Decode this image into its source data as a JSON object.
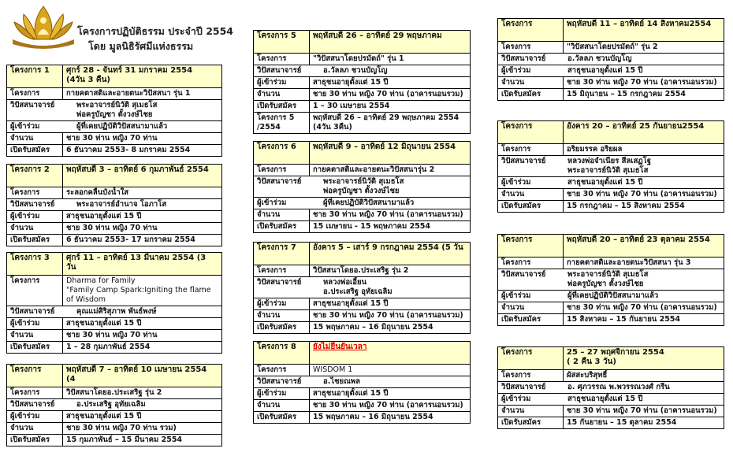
{
  "header": {
    "title_line1": "โครงการปฏิบัติธรรม ประจำปี 2554",
    "title_line2": "โดย มูลนิธิรัศมีแห่งธรรม",
    "logo_text": "มูลนิธิ รัศมีแห่งธรรม"
  },
  "colors": {
    "header_bg": "#ffffcc",
    "logo_gold": "#c8961e",
    "highlight_red": "#e00000"
  },
  "programs": [
    {
      "id": "t1",
      "head": [
        "โครงการ 1",
        [
          "ศุกร์ 28 - จันทร์ 31 มกราคม 2554",
          "(4วัน 3 คืน)"
        ]
      ],
      "rows": [
        [
          "โครงการ",
          [
            "กายคตาสติและอายตนะวิปัสสนา รุ่น 1"
          ]
        ],
        [
          "วิปัสสนาจารย์",
          [
            "พระอาจารย์นิวัติ สุเมธโส",
            "พ่อครูบัญชา ตั้งวงษ์ไชย"
          ],
          "span"
        ],
        [
          "ผู้เข้าร่วม",
          [
            "ผู้ที่เคยปฏิบัติวิปัสสนามาแล้ว"
          ],
          "span"
        ],
        [
          "จำนวน",
          [
            "ชาย 30 ท่าน หญิง 70 ท่าน"
          ]
        ],
        [
          "เปิดรับสมัคร",
          [
            "6 ธันวาคม 2553- 8 มกราคม 2554"
          ]
        ]
      ]
    },
    {
      "id": "t2",
      "head": [
        "โครงการ 2",
        [
          "พฤหัสบดี 3 – อาทิตย์ 6 กุมภาพันธ์ 2554"
        ]
      ],
      "rows": [
        [
          "โครงการ",
          [
            "ระลอกคลื่นบังน้ำใส"
          ]
        ],
        [
          "วิปัสสนาจารย์",
          [
            "พระอาจารย์อำนาจ โอภาโส"
          ],
          "span"
        ],
        [
          "ผู้เข้าร่วม",
          [
            "สาธุชนอายุตั้งแต่ 15 ปี"
          ]
        ],
        [
          "จำนวน",
          [
            "ชาย 30 ท่าน หญิง 70 ท่าน"
          ]
        ],
        [
          "เปิดรับสมัคร",
          [
            "6 ธันวาคม 2553- 17 มกราคม 2554"
          ]
        ]
      ]
    },
    {
      "id": "t3",
      "head": [
        "โครงการ 3",
        [
          "ศุกร์ 11 – อาทิตย์ 13 มีนาคม 2554 (3 วัน"
        ]
      ],
      "rows": [
        [
          "โครงการ",
          [
            "Dharma for Family",
            "\"Family Camp Spark:Igniting the flame of Wisdom"
          ],
          "plain"
        ],
        [
          "วิปัสสนาจารย์",
          [
            "คุณแม่ศิริสุภาพ พันธ์พงษ์"
          ],
          "span"
        ],
        [
          "ผู้เข้าร่วม",
          [
            "สาธุชนอายุตั้งแต่ 15 ปี"
          ]
        ],
        [
          "จำนวน",
          [
            "ชาย 30 ท่าน หญิง 70 ท่าน"
          ]
        ],
        [
          "เปิดรับสมัคร",
          [
            "1 – 28 กุมภาพันธ์ 2554"
          ]
        ]
      ]
    },
    {
      "id": "t4",
      "head": [
        "โครงการ",
        [
          "พฤหัสบดี 7 – อาทิตย์ 10 เมษายน 2554 (4"
        ]
      ],
      "rows": [
        [
          "โครงการ",
          [
            "วิปัสสนาโดยอ.ประเสริฐ รุ่น 2"
          ]
        ],
        [
          "วิปัสสนาจารย์",
          [
            "อ.ประเสริฐ  อุทัยเฉลิม"
          ],
          "span"
        ],
        [
          "ผู้เข้าร่วม",
          [
            "สาธุชนอายุตั้งแต่ 15 ปี"
          ]
        ],
        [
          "จำนวน",
          [
            "ชาย 30 ท่าน หญิง 70 ท่าน รวม)"
          ]
        ],
        [
          "เปิดรับสมัคร",
          [
            "15 กุมภาพันธ์ – 15 มีนาคม  2554"
          ]
        ]
      ]
    },
    {
      "id": "t5",
      "head": [
        "โครงการ 5",
        [
          "พฤหัสบดี 26 – อาทิตย์ 29 พฤษภาคม"
        ]
      ],
      "rows": [
        [
          "โครงการ",
          [
            "\"วิปัสสนาโดยปรมัตถ์\"  รุ่น 1"
          ]
        ],
        [
          "วิปัสสนาจารย์",
          [
            "อ.วัลลภ ชวนบัญโญ"
          ],
          "span"
        ],
        [
          "ผู้เข้าร่วม",
          [
            "สาธุชนอายุตั้งแต่ 15 ปี"
          ]
        ],
        [
          "จำนวน",
          [
            "ชาย 30 ท่าน หญิง 70 ท่าน (อาคารนอนรวม)"
          ]
        ],
        [
          "เปิดรับสมัคร",
          [
            "1 – 30 เมษายน 2554"
          ]
        ],
        [
          "โครงการ 5 /2554",
          [
            "พฤหัสบดี 26 – อาทิตย์ 29 พฤษภาคม 2554 (4วัน 3คืน)"
          ]
        ]
      ]
    },
    {
      "id": "t6",
      "head": [
        "โครงการ 6",
        [
          "พฤหัสบดี 9 – อาทิตย์ 12 มิถุนายน 2554"
        ]
      ],
      "rows": [
        [
          "โครงการ",
          [
            "กายคตาสติและอายตนะวิปัสสนารุ่น 2"
          ]
        ],
        [
          "วิปัสสนาจารย์",
          [
            "พระอาจารย์นิวัติ สุเมธโส",
            "พ่อครูบัญชา ตั้งวงษ์ไชย"
          ],
          "span"
        ],
        [
          "ผู้เข้าร่วม",
          [
            "ผู้ที่เคยปฏิบัติวิปัสสนามาแล้ว"
          ],
          "span"
        ],
        [
          "จำนวน",
          [
            "ชาย 30 ท่าน หญิง 70 ท่าน (อาคารนอนรวม)"
          ]
        ],
        [
          "เปิดรับสมัคร",
          [
            "15 เมษายน - 15 พฤษภาคม  2554"
          ]
        ]
      ]
    },
    {
      "id": "t7",
      "head": [
        "โครงการ 7",
        [
          "อังคาร 5 – เสาร์ 9 กรกฎาคม 2554 (5 วัน"
        ]
      ],
      "rows": [
        [
          "โครงการ",
          [
            "วิปัสสนาโดยอ.ประเสริฐ รุ่น 2"
          ]
        ],
        [
          "วิปัสสนาจารย์",
          [
            "หลวงพ่อเอี้ยน",
            "อ.ประเสริฐ  อุทัยเฉลิม"
          ],
          "span"
        ],
        [
          "ผู้เข้าร่วม",
          [
            "สาธุชนอายุตั้งแต่ 15 ปี"
          ]
        ],
        [
          "จำนวน",
          [
            "ชาย 30 ท่าน หญิง 70 ท่าน (อาคารนอนรวม)"
          ]
        ],
        [
          "เปิดรับสมัคร",
          [
            "15 พฤษภาคม – 16 มิถุนายน 2554"
          ]
        ]
      ]
    },
    {
      "id": "t8",
      "head": [
        "โครงการ 8",
        [
          "ยังไม่ยืนยันเวลา"
        ],
        "red"
      ],
      "rows": [
        [
          "โครงการ",
          [
            "WISDOM 1"
          ],
          "plain"
        ],
        [
          "วิปัสสนาจารย์",
          [
            "อ.ไชยณพล"
          ],
          "span"
        ],
        [
          "ผู้เข้าร่วม",
          [
            "สาธุชนอายุตั้งแต่ 15 ปี"
          ]
        ],
        [
          "จำนวน",
          [
            "ชาย 30 ท่าน หญิง 70 ท่าน (อาคารนอนรวม)"
          ]
        ],
        [
          "เปิดรับสมัคร",
          [
            "15 พฤษภาคม – 16 มิถุนายน 2554"
          ]
        ]
      ]
    },
    {
      "id": "t9",
      "head": [
        "โครงการ",
        [
          "พฤหัสบดี 11 – อาทิตย์ 14 สิงหาคม2554"
        ]
      ],
      "rows": [
        [
          "โครงการ",
          [
            "\"วิปัสสนาโดยปรมัตถ์\"  รุ่น 2"
          ]
        ],
        [
          "วิปัสสนาจารย์",
          [
            "อ.วัลลภ ชวนบัญโญ"
          ],
          "span"
        ],
        [
          "ผู้เข้าร่วม",
          [
            "สาธุชนอายุตั้งแต่ 15 ปี"
          ],
          "span"
        ],
        [
          "จำนวน",
          [
            "ชาย 30 ท่าน หญิง 70 ท่าน (อาคารนอนรวม)"
          ]
        ],
        [
          "เปิดรับสมัคร",
          [
            "15 มิถุนายน – 15 กรกฎาคม 2554"
          ]
        ]
      ]
    },
    {
      "id": "t10",
      "head": [
        "โครงการ",
        [
          "อังคาร 20 – อาทิตย์ 25 กันยายน2554"
        ]
      ],
      "rows": [
        [
          "โครงการ",
          [
            "อริยมรรค  อริยผล"
          ]
        ],
        [
          "วิปัสสนาจารย์",
          [
            "หลวงพ่อจำเนียร  สีลเสฏโฐ",
            "พระอาจารย์นิวัติ  สุเมธโส"
          ],
          "span"
        ],
        [
          "ผู้เข้าร่วม",
          [
            "สาธุชนอายุตั้งแต่ 15 ปี"
          ],
          "span"
        ],
        [
          "จำนวน",
          [
            "ชาย 30 ท่าน หญิง 70 ท่าน (อาคารนอนรวม)"
          ]
        ],
        [
          "เปิดรับสมัคร",
          [
            "15 กรกฎาคม – 15 สิงหาคม 2554"
          ]
        ]
      ]
    },
    {
      "id": "t11",
      "head": [
        "โครงการ",
        [
          "พฤหัสบดี 20 – อาทิตย์ 23 ตุลาคม 2554"
        ]
      ],
      "rows": [
        [
          "โครงการ",
          [
            "กายคตาสติและอายตนะวิปัสสนา รุ่น 3"
          ]
        ],
        [
          "วิปัสสนาจารย์",
          [
            "พระอาจารย์นิวัติ สุเมธโส",
            "พ่อครูบัญชา ตั้งวงษ์ไชย"
          ],
          "span"
        ],
        [
          "ผู้เข้าร่วม",
          [
            "ผู้ที่เคยปฏิบัติวิปัสสนามาแล้ว"
          ],
          "span"
        ],
        [
          "จำนวน",
          [
            "ชาย 30 ท่าน หญิง 70 ท่าน (อาคารนอนรวม)"
          ]
        ],
        [
          "เปิดรับสมัคร",
          [
            "15 สิงหาคม – 15 กันยายน 2554"
          ]
        ]
      ]
    },
    {
      "id": "t12",
      "head": [
        "โครงการ",
        [
          "25 – 27 พฤศจิกายน 2554",
          "( 2 คืน 3 วัน)"
        ]
      ],
      "rows": [
        [
          "โครงการ",
          [
            "ผัสสะบริสุทธิ์"
          ]
        ],
        [
          "วิปัสสนาจารย์",
          [
            "อ. ศุภวรรณ พ.พวรรณวงศ์ กรีน"
          ],
          "span"
        ],
        [
          "ผู้เข้าร่วม",
          [
            "สาธุชนอายุตั้งแต่ 15 ปี"
          ],
          "span"
        ],
        [
          "จำนวน",
          [
            "ชาย 30 ท่าน หญิง 70 ท่าน (อาคารนอนรวม)"
          ]
        ],
        [
          "เปิดรับสมัคร",
          [
            "15 กันยายน – 15 ตุลาคม 2554"
          ]
        ]
      ]
    }
  ]
}
